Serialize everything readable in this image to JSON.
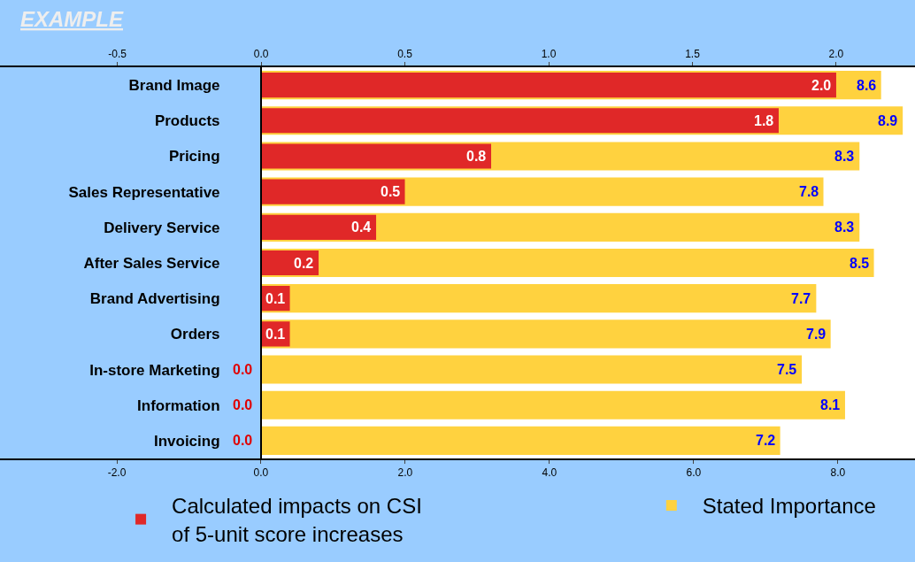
{
  "chart_data": {
    "type": "bar",
    "orientation": "horizontal",
    "annotations": [
      "EXAMPLE"
    ],
    "categories": [
      "Brand Image",
      "Products",
      "Pricing",
      "Sales Representative",
      "Delivery Service",
      "After Sales Service",
      "Brand Advertising",
      "Orders",
      "In-store Marketing",
      "Information",
      "Invoicing"
    ],
    "series": [
      {
        "name": "Stated Importance",
        "color": "#ffd23f",
        "values": [
          8.6,
          8.9,
          8.3,
          7.8,
          8.3,
          8.5,
          7.7,
          7.9,
          7.5,
          8.1,
          7.2
        ],
        "value_labels": [
          "8.6",
          "8.9",
          "8.3",
          "7.8",
          "8.3",
          "8.5",
          "7.7",
          "7.9",
          "7.5",
          "8.1",
          "7.2"
        ]
      },
      {
        "name": "Calculated impacts on CSI of 5-unit score increases",
        "color": "#e02828",
        "axis": "x2",
        "values": [
          2.0,
          1.8,
          0.8,
          0.5,
          0.4,
          0.2,
          0.1,
          0.1,
          0.0,
          0.0,
          0.0
        ],
        "value_labels": [
          "2.0",
          "1.8",
          "0.8",
          "0.5",
          "0.4",
          "0.2",
          "0.1",
          "0.1",
          "0.0",
          "0.0",
          "0.0"
        ]
      }
    ],
    "xlim": [
      -3.62,
      9.07
    ],
    "xticks": [
      {
        "value": -2,
        "label": "-2.0"
      },
      {
        "value": 0,
        "label": "0.0"
      },
      {
        "value": 2,
        "label": "2.0"
      },
      {
        "value": 4,
        "label": "4.0"
      },
      {
        "value": 6,
        "label": "6.0"
      },
      {
        "value": 8,
        "label": "8.0"
      }
    ],
    "x2lim": [
      -0.908,
      2.274
    ],
    "x2ticks": [
      {
        "value": -0.5,
        "label": "-0.5"
      },
      {
        "value": 0,
        "label": "0.0"
      },
      {
        "value": 0.5,
        "label": "0.5"
      },
      {
        "value": 1,
        "label": "1.0"
      },
      {
        "value": 1.5,
        "label": "1.5"
      },
      {
        "value": 2,
        "label": "2.0"
      }
    ],
    "legend": "bottom"
  }
}
